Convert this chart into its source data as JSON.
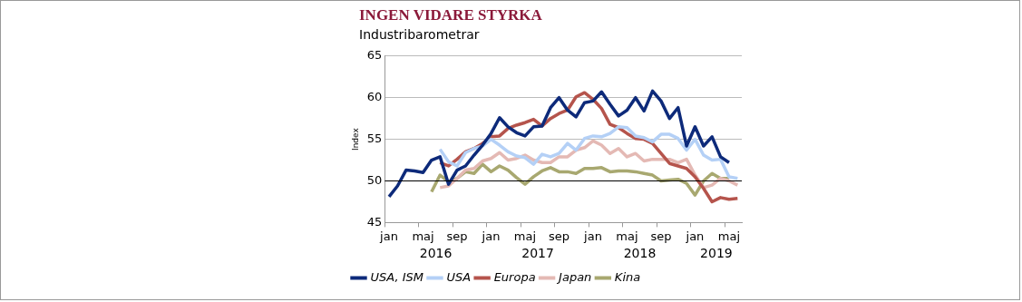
{
  "chart_data": {
    "type": "line",
    "title": "INGEN VIDARE STYRKA",
    "subtitle": "Industribarometrar",
    "ylabel": "Index",
    "categories": [
      "jan",
      null,
      null,
      null,
      "maj",
      null,
      null,
      null,
      "sep",
      null,
      null,
      null,
      "jan",
      null,
      null,
      null,
      "maj",
      null,
      null,
      null,
      "sep",
      null,
      null,
      null,
      "jan",
      null,
      null,
      null,
      "maj",
      null,
      null,
      null,
      "sep",
      null,
      null,
      null,
      "jan",
      null,
      null,
      null,
      "maj",
      null
    ],
    "series": [
      {
        "name": "USA, ISM",
        "color": "#0d2a7a",
        "values": [
          48.1,
          49.4,
          51.3,
          51.2,
          51.0,
          52.5,
          52.9,
          49.6,
          51.3,
          51.8,
          53.1,
          54.3,
          55.7,
          57.6,
          56.5,
          55.8,
          55.4,
          56.5,
          56.6,
          58.8,
          60.0,
          58.5,
          57.7,
          59.4,
          59.6,
          60.7,
          59.2,
          57.8,
          58.5,
          60.0,
          58.4,
          60.8,
          59.6,
          57.5,
          58.8,
          54.2,
          56.5,
          54.2,
          55.3,
          52.9,
          52.2,
          null
        ]
      },
      {
        "name": "USA",
        "color": "#b4d0f6",
        "values": [
          null,
          null,
          null,
          null,
          null,
          null,
          53.8,
          52.3,
          51.8,
          53.4,
          53.9,
          54.2,
          55.0,
          54.3,
          53.5,
          53.0,
          52.8,
          52.0,
          53.2,
          52.9,
          53.3,
          54.5,
          53.7,
          55.1,
          55.4,
          55.3,
          55.7,
          56.5,
          56.4,
          55.4,
          55.2,
          54.7,
          55.6,
          55.6,
          55.1,
          53.7,
          55.0,
          53.1,
          52.5,
          52.6,
          50.5,
          50.3
        ]
      },
      {
        "name": "Europa",
        "color": "#b5544c",
        "values": [
          null,
          null,
          null,
          null,
          null,
          null,
          52.2,
          51.8,
          52.6,
          53.5,
          53.9,
          54.5,
          55.3,
          55.4,
          56.3,
          56.7,
          57.0,
          57.4,
          56.6,
          57.5,
          58.1,
          58.5,
          60.1,
          60.6,
          59.8,
          58.7,
          56.8,
          56.4,
          55.7,
          55.1,
          55.0,
          54.5,
          53.3,
          52.1,
          51.8,
          51.5,
          50.5,
          49.1,
          47.5,
          48.0,
          47.8,
          47.9
        ]
      },
      {
        "name": "Japan",
        "color": "#e4b9b4",
        "values": [
          null,
          null,
          null,
          null,
          null,
          null,
          49.2,
          49.4,
          50.3,
          51.3,
          51.5,
          52.4,
          52.7,
          53.4,
          52.5,
          52.7,
          53.1,
          52.5,
          52.2,
          52.2,
          52.9,
          52.9,
          53.7,
          54.0,
          54.8,
          54.3,
          53.3,
          53.9,
          52.9,
          53.3,
          52.4,
          52.6,
          52.6,
          52.6,
          52.2,
          52.6,
          50.7,
          49.2,
          49.5,
          50.3,
          50.0,
          49.5
        ]
      },
      {
        "name": "Kina",
        "color": "#a8a870",
        "values": [
          null,
          null,
          null,
          null,
          null,
          48.7,
          50.7,
          49.9,
          50.3,
          51.1,
          50.9,
          52.0,
          51.1,
          51.8,
          51.3,
          50.4,
          49.6,
          50.5,
          51.2,
          51.6,
          51.1,
          51.1,
          50.9,
          51.5,
          51.5,
          51.6,
          51.1,
          51.2,
          51.2,
          51.1,
          50.9,
          50.7,
          50.0,
          50.1,
          50.2,
          49.7,
          48.3,
          50.0,
          50.9,
          50.3,
          50.3,
          null
        ]
      }
    ],
    "ylim": [
      45,
      65
    ],
    "yticks": [
      45,
      50,
      55,
      60,
      65
    ],
    "grid": "y",
    "legend": "bottom",
    "marker": "none",
    "line_style": "solid",
    "ref_lines": [
      {
        "axis": "y",
        "value": 50,
        "color": "#000000"
      }
    ],
    "annotations": [
      "2016",
      "2017",
      "2018",
      "2019"
    ]
  }
}
